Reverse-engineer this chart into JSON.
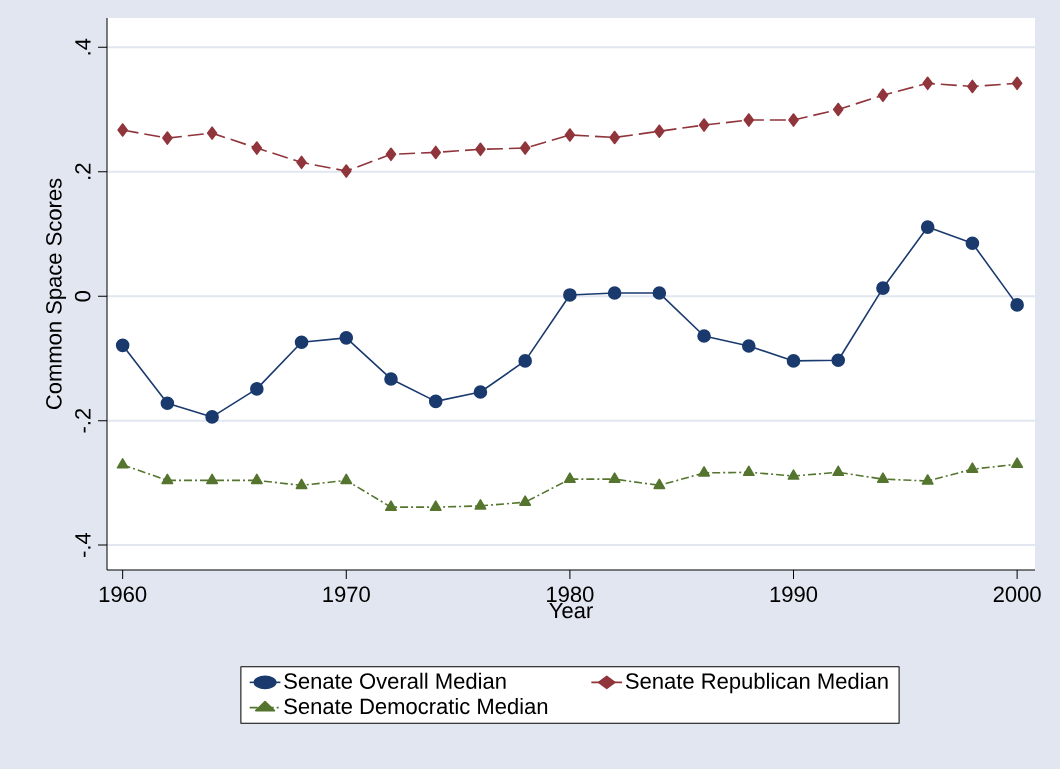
{
  "chart_data": {
    "type": "line",
    "xlabel": "Year",
    "ylabel": "Common Space Scores",
    "x": [
      1960,
      1962,
      1964,
      1966,
      1968,
      1970,
      1972,
      1974,
      1976,
      1978,
      1980,
      1982,
      1984,
      1986,
      1988,
      1990,
      1992,
      1994,
      1996,
      1998,
      2000
    ],
    "series": [
      {
        "name": "Senate Overall Median",
        "color": "#1a3a6e",
        "marker": "circle",
        "line_style": "solid",
        "values": [
          -0.079,
          -0.172,
          -0.194,
          -0.149,
          -0.074,
          -0.067,
          -0.133,
          -0.169,
          -0.154,
          -0.104,
          0.002,
          0.005,
          0.005,
          -0.064,
          -0.08,
          -0.104,
          -0.103,
          0.013,
          0.111,
          0.085,
          -0.014
        ]
      },
      {
        "name": "Senate Republican Median",
        "color": "#90353b",
        "marker": "diamond",
        "line_style": "dashed",
        "values": [
          0.267,
          0.254,
          0.262,
          0.238,
          0.215,
          0.201,
          0.228,
          0.231,
          0.236,
          0.238,
          0.259,
          0.255,
          0.265,
          0.275,
          0.283,
          0.283,
          0.3,
          0.323,
          0.342,
          0.337,
          0.342
        ]
      },
      {
        "name": "Senate Democratic Median",
        "color": "#55752f",
        "marker": "triangle",
        "line_style": "dashdot",
        "values": [
          -0.271,
          -0.296,
          -0.296,
          -0.296,
          -0.304,
          -0.296,
          -0.339,
          -0.339,
          -0.337,
          -0.331,
          -0.294,
          -0.294,
          -0.304,
          -0.284,
          -0.283,
          -0.289,
          -0.283,
          -0.294,
          -0.297,
          -0.278,
          -0.27
        ]
      }
    ],
    "xlim": [
      1959.3,
      2000.8
    ],
    "ylim": [
      -0.44,
      0.447
    ],
    "xticks": [
      1960,
      1970,
      1980,
      1990,
      2000
    ],
    "yticks": [
      {
        "value": -0.4,
        "label": "-.4"
      },
      {
        "value": -0.2,
        "label": "-.2"
      },
      0,
      {
        "value": 0.2,
        "label": ".2"
      },
      {
        "value": 0.4,
        "label": ".4"
      }
    ],
    "grid": "y",
    "legend": "bottom"
  }
}
